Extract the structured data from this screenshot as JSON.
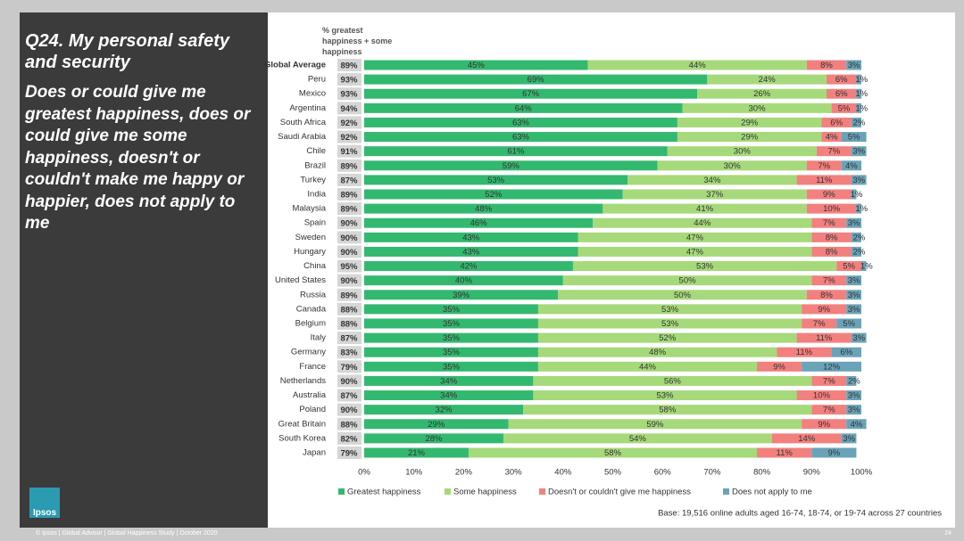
{
  "title": "Q24. My personal safety and security",
  "subtitle": "Does or could give me greatest happiness, does or could give me some happiness, doesn't or couldn't make me happy or happier, does not apply to me",
  "logo": "Ipsos",
  "footer": "© Ipsos | Global Advisor | Global Happiness Study | October 2020",
  "page_number": "24",
  "chart_data": {
    "type": "stacked_barh",
    "categories": [
      "Global Average",
      "Peru",
      "Mexico",
      "Argentina",
      "South Africa",
      "Saudi Arabia",
      "Chile",
      "Brazil",
      "Turkey",
      "India",
      "Malaysia",
      "Spain",
      "Sweden",
      "Hungary",
      "China",
      "United States",
      "Russia",
      "Canada",
      "Belgium",
      "Italy",
      "Germany",
      "France",
      "Netherlands",
      "Australia",
      "Poland",
      "Great Britain",
      "South Korea",
      "Japan"
    ],
    "series": [
      {
        "name": "Greatest happiness",
        "color": "#33b86f",
        "values": [
          45,
          69,
          67,
          64,
          63,
          63,
          61,
          59,
          53,
          52,
          48,
          46,
          43,
          43,
          42,
          40,
          39,
          35,
          35,
          35,
          35,
          35,
          34,
          34,
          32,
          29,
          28,
          21
        ],
        "value_labels": [
          "45%",
          "69%",
          "67%",
          "64%",
          "63%",
          "63%",
          "61%",
          "59%",
          "53%",
          "52%",
          "48%",
          "46%",
          "43%",
          "43%",
          "42%",
          "40%",
          "39%",
          "35%",
          "35%",
          "35%",
          "35%",
          "35%",
          "34%",
          "34%",
          "32%",
          "29%",
          "28%",
          "21%"
        ]
      },
      {
        "name": "Some happiness",
        "color": "#a6d97a",
        "values": [
          44,
          24,
          26,
          30,
          29,
          29,
          30,
          30,
          34,
          37,
          41,
          44,
          47,
          47,
          53,
          50,
          50,
          53,
          53,
          52,
          48,
          44,
          56,
          53,
          58,
          59,
          54,
          58
        ],
        "value_labels": [
          "44%",
          "24%",
          "26%",
          "30%",
          "29%",
          "29%",
          "30%",
          "30%",
          "34%",
          "37%",
          "41%",
          "44%",
          "47%",
          "47%",
          "53%",
          "50%",
          "50%",
          "53%",
          "53%",
          "52%",
          "48%",
          "44%",
          "56%",
          "53%",
          "58%",
          "59%",
          "54%",
          "58%"
        ]
      },
      {
        "name": "Doesn't or couldn't give me happiness",
        "color": "#f2807f",
        "values": [
          8,
          6,
          6,
          5,
          6,
          4,
          7,
          7,
          11,
          9,
          10,
          7,
          8,
          8,
          5,
          7,
          8,
          9,
          7,
          11,
          11,
          9,
          7,
          10,
          7,
          9,
          14,
          11
        ],
        "value_labels": [
          "8%",
          "6%",
          "6%",
          "5%",
          "6%",
          "4%",
          "7%",
          "7%",
          "11%",
          "9%",
          "10%",
          "7%",
          "8%",
          "8%",
          "5%",
          "7%",
          "8%",
          "9%",
          "7%",
          "11%",
          "11%",
          "9%",
          "7%",
          "10%",
          "7%",
          "9%",
          "14%",
          "11%"
        ]
      },
      {
        "name": "Does not apply to me",
        "color": "#6aa3b8",
        "values": [
          3,
          1,
          1,
          1,
          2,
          5,
          3,
          4,
          3,
          1,
          1,
          3,
          2,
          2,
          1,
          3,
          3,
          3,
          5,
          3,
          6,
          12,
          2,
          3,
          3,
          4,
          3,
          9
        ],
        "value_labels": [
          "3%",
          "1%",
          "1%",
          "1%",
          "2%",
          "5%",
          "3%",
          "4%",
          "3%",
          "1%",
          "1%",
          "3%",
          "2%",
          "2%",
          "1%",
          "3%",
          "3%",
          "3%",
          "5%",
          "3%",
          "6%",
          "12%",
          "2%",
          "3%",
          "3%",
          "4%",
          "3%",
          "9%"
        ]
      }
    ],
    "totals": {
      "name": "% greatest happiness + some happiness",
      "values": [
        89,
        93,
        93,
        94,
        92,
        92,
        91,
        89,
        87,
        89,
        89,
        90,
        90,
        90,
        95,
        90,
        89,
        88,
        88,
        87,
        83,
        79,
        90,
        87,
        90,
        88,
        82,
        79
      ],
      "value_labels": [
        "89%",
        "93%",
        "93%",
        "94%",
        "92%",
        "92%",
        "91%",
        "89%",
        "87%",
        "89%",
        "89%",
        "90%",
        "90%",
        "90%",
        "95%",
        "90%",
        "89%",
        "88%",
        "88%",
        "87%",
        "83%",
        "79%",
        "90%",
        "87%",
        "90%",
        "88%",
        "82%",
        "79%"
      ]
    },
    "xlim": [
      0,
      100
    ],
    "xticks": [
      {
        "value": 0,
        "label": "0%"
      },
      {
        "value": 10,
        "label": "10%"
      },
      {
        "value": 20,
        "label": "20%"
      },
      {
        "value": 30,
        "label": "30%"
      },
      {
        "value": 40,
        "label": "40%"
      },
      {
        "value": 50,
        "label": "50%"
      },
      {
        "value": 60,
        "label": "60%"
      },
      {
        "value": 70,
        "label": "70%"
      },
      {
        "value": 80,
        "label": "80%"
      },
      {
        "value": 90,
        "label": "90%"
      },
      {
        "value": 100,
        "label": "100%"
      }
    ],
    "legend": "bottom",
    "note": "Base: 19,516 online adults aged 16-74, 18-74, or 19-74 across 27 countries"
  }
}
